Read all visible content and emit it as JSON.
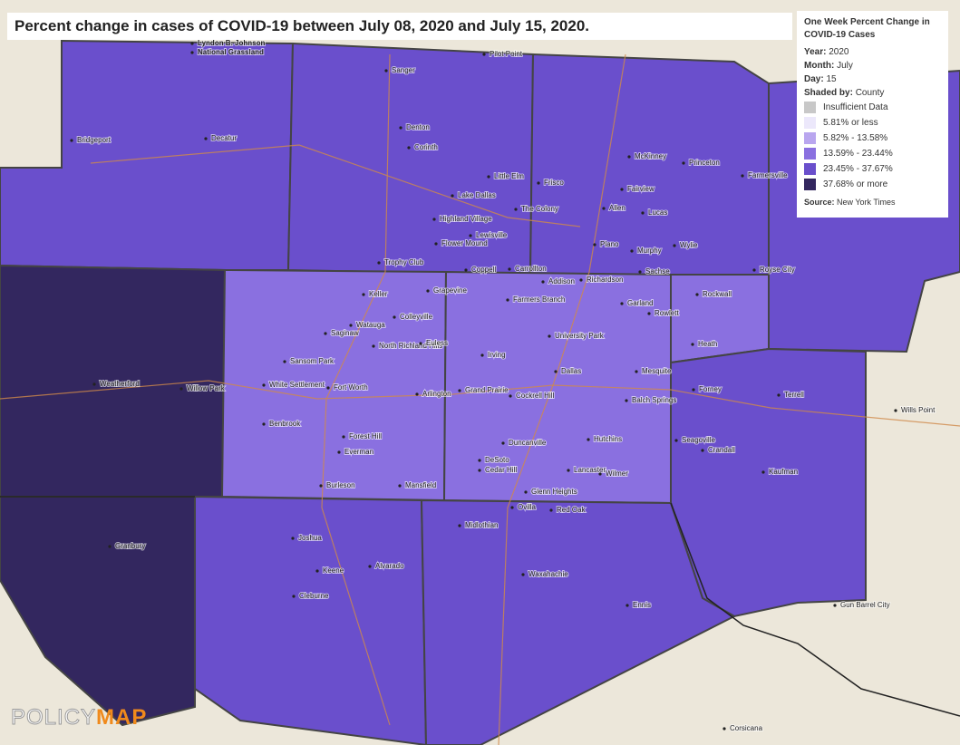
{
  "title": "Percent change in cases of COVID-19 between July 08, 2020 and July 15, 2020.",
  "legend": {
    "heading": "One Week Percent Change in COVID-19 Cases",
    "year_label": "Year:",
    "year": "2020",
    "month_label": "Month:",
    "month": "July",
    "day_label": "Day:",
    "day": "15",
    "shaded_label": "Shaded by:",
    "shaded_value": "County",
    "items": [
      {
        "label": "Insufficient Data",
        "color": "#c8c8c8"
      },
      {
        "label": "5.81% or less",
        "color": "#ece8fb"
      },
      {
        "label": "5.82% - 13.58%",
        "color": "#b9a6ef"
      },
      {
        "label": "13.59% - 23.44%",
        "color": "#8a70e0"
      },
      {
        "label": "23.45% - 37.67%",
        "color": "#6a4fcc"
      },
      {
        "label": "37.68% or more",
        "color": "#33275f"
      }
    ],
    "source_label": "Source:",
    "source": "New York Times"
  },
  "brand": {
    "part1": "POLICY",
    "part2": "MAP"
  },
  "places": [
    "Lyndon B. Johnson",
    "National Grassland",
    "Decatur",
    "Bridgeport",
    "Sanger",
    "Pilot Point",
    "Denton",
    "Corinth",
    "Lake Dallas",
    "Little Elm",
    "The Colony",
    "Highland Village",
    "Lewisville",
    "Flower Mound",
    "Frisco",
    "McKinney",
    "Princeton",
    "Farmersville",
    "Fairview",
    "Allen",
    "Lucas",
    "Plano",
    "Murphy",
    "Wylie",
    "Sachse",
    "Royse City",
    "Rockwall",
    "Heath",
    "Carrollton",
    "Addison",
    "Richardson",
    "Garland",
    "Rowlett",
    "Farmers Branch",
    "University Park",
    "Coppell",
    "Grapevine",
    "Keller",
    "Colleyville",
    "Watauga",
    "Saginaw",
    "North Richland Hills",
    "Euless",
    "Irving",
    "Dallas",
    "Mesquite",
    "Fort Worth",
    "Arlington",
    "Grand Prairie",
    "White Settlement",
    "Sansom Park",
    "Benbrook",
    "Forest Hill",
    "Everman",
    "Burleson",
    "Mansfield",
    "Cedar Hill",
    "Duncanville",
    "DeSoto",
    "Cockrell Hill",
    "Lancaster",
    "Hutchins",
    "Balch Springs",
    "Seagoville",
    "Wilmer",
    "Glenn Heights",
    "Forney",
    "Terrell",
    "Crandall",
    "Kaufman",
    "Wills Point",
    "Weatherford",
    "Willow Park",
    "Granbury",
    "Joshua",
    "Keene",
    "Alvarado",
    "Cleburne",
    "Midlothian",
    "Ovilla",
    "Red Oak",
    "Waxahachie",
    "Ennis",
    "Corsicana",
    "Gun Barrel City",
    "Trophy Club"
  ]
}
